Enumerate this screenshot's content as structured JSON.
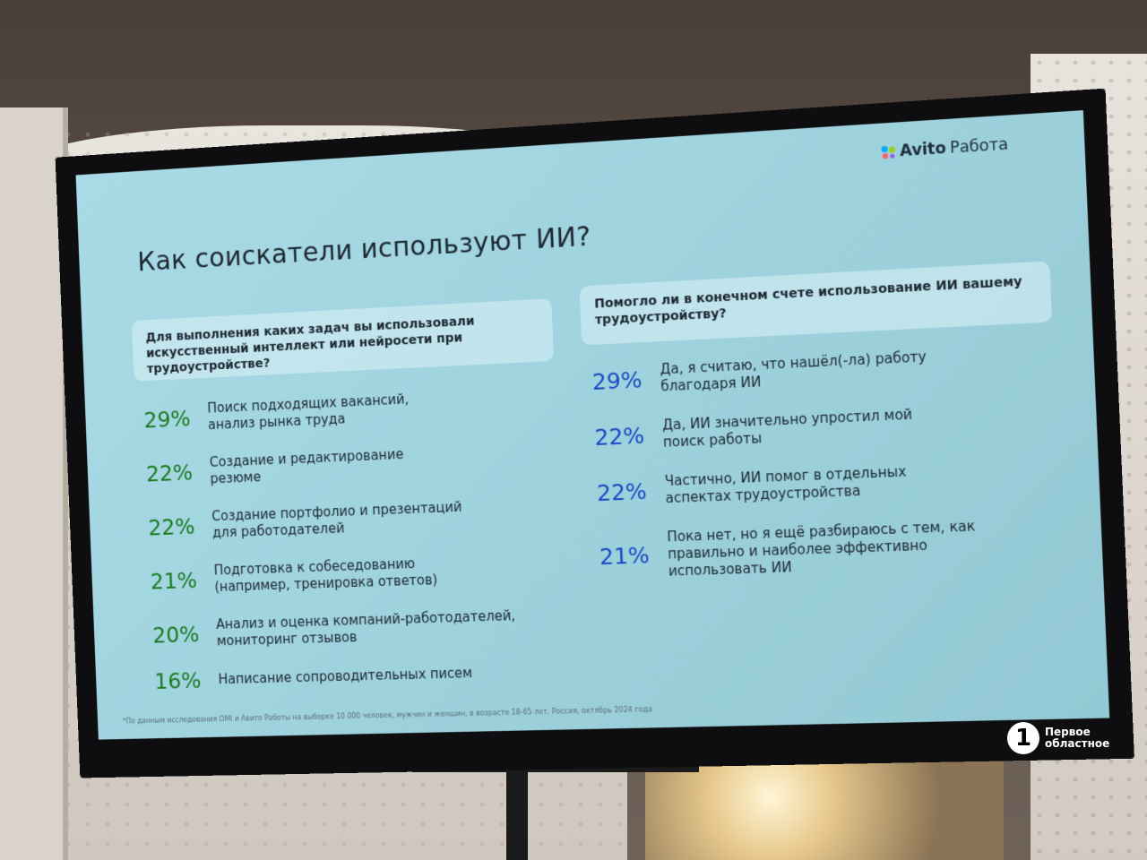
{
  "brand": {
    "name_bold": "Avito",
    "name_rest": "Работа"
  },
  "title": "Как соискатели используют ИИ?",
  "left": {
    "question": "Для выполнения каких задач вы использовали искусственный интеллект или нейросети при трудоустройстве?",
    "items": [
      {
        "pct": "29%",
        "text": "Поиск подходящих вакансий, анализ рынка труда"
      },
      {
        "pct": "22%",
        "text": "Создание и редактирование резюме"
      },
      {
        "pct": "22%",
        "text": "Создание портфолио и презентаций для работодателей"
      },
      {
        "pct": "21%",
        "text": "Подготовка к собеседованию (например, тренировка ответов)"
      },
      {
        "pct": "20%",
        "text": "Анализ и оценка компаний-работодателей, мониторинг отзывов"
      },
      {
        "pct": "16%",
        "text": "Написание сопроводительных писем"
      }
    ]
  },
  "right": {
    "question": "Помогло ли в конечном счете использование ИИ вашему трудоустройству?",
    "items": [
      {
        "pct": "29%",
        "text": "Да, я считаю, что нашёл(-ла) работу благодаря ИИ"
      },
      {
        "pct": "22%",
        "text": "Да, ИИ значительно упростил мой поиск работы"
      },
      {
        "pct": "22%",
        "text": "Частично, ИИ помог в отдельных аспектах трудоустройства"
      },
      {
        "pct": "21%",
        "text": "Пока нет, но я ещё разбираюсь с тем, как правильно и наиболее эффективно использовать ИИ"
      }
    ]
  },
  "footnote": "*По данным исследования OMI и Авито Работы на выборке 10 000 человек, мужчин и женщин, в возрасте 18-65 лет. Россия, октябрь 2024 года",
  "watermark": {
    "number": "1",
    "line1": "Первое",
    "line2": "областное"
  },
  "colors": {
    "left_pct": "#1a7a1f",
    "right_pct": "#1d47c2",
    "screen": "#a9dbe6"
  }
}
